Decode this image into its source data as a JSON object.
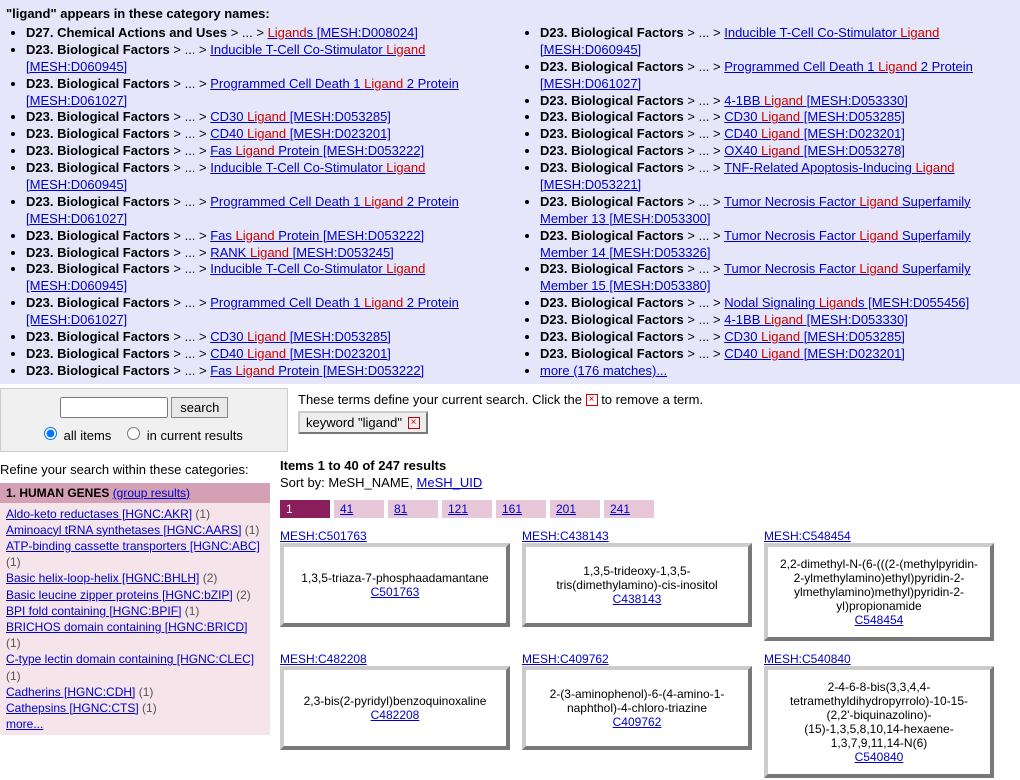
{
  "top": {
    "heading": "\"ligand\" appears in these category names:",
    "leftItems": [
      {
        "prefix": "D27. Chemical Actions and Uses",
        "linkTextPre": "Ligand",
        "linkTextHL": "s",
        "linkMesh": " [MESH:D008024]"
      },
      {
        "prefix": "D23. Biological Factors",
        "linkText": "Inducible T-Cell Co-Stimulator ",
        "hl": "Ligand",
        "mesh": " [MESH:D060945]"
      },
      {
        "prefix": "D23. Biological Factors",
        "linkText": "Programmed Cell Death 1 ",
        "hl": "Ligand",
        "post": " 2 Protein",
        "mesh": " [MESH:D061027]"
      },
      {
        "prefix": "D23. Biological Factors",
        "linkText": "CD30 ",
        "hl": "Ligand",
        "mesh": " [MESH:D053285]"
      },
      {
        "prefix": "D23. Biological Factors",
        "linkText": "CD40 ",
        "hl": "Ligand",
        "mesh": " [MESH:D023201]"
      },
      {
        "prefix": "D23. Biological Factors",
        "linkText": "Fas ",
        "hl": "Ligand",
        "post": " Protein",
        "mesh": " [MESH:D053222]"
      },
      {
        "prefix": "D23. Biological Factors",
        "linkText": "Inducible T-Cell Co-Stimulator ",
        "hl": "Ligand",
        "mesh": " [MESH:D060945]"
      },
      {
        "prefix": "D23. Biological Factors",
        "linkText": "Programmed Cell Death 1 ",
        "hl": "Ligand",
        "post": " 2 Protein",
        "mesh": " [MESH:D061027]"
      },
      {
        "prefix": "D23. Biological Factors",
        "linkText": "Fas ",
        "hl": "Ligand",
        "post": " Protein",
        "mesh": " [MESH:D053222]"
      },
      {
        "prefix": "D23. Biological Factors",
        "linkText": "RANK ",
        "hl": "Ligand",
        "mesh": " [MESH:D053245]"
      },
      {
        "prefix": "D23. Biological Factors",
        "linkText": "Inducible T-Cell Co-Stimulator ",
        "hl": "Ligand",
        "mesh": " [MESH:D060945]"
      },
      {
        "prefix": "D23. Biological Factors",
        "linkText": "Programmed Cell Death 1 ",
        "hl": "Ligand",
        "post": " 2 Protein",
        "mesh": " [MESH:D061027]"
      },
      {
        "prefix": "D23. Biological Factors",
        "linkText": "CD30 ",
        "hl": "Ligand",
        "mesh": " [MESH:D053285]"
      },
      {
        "prefix": "D23. Biological Factors",
        "linkText": "CD40 ",
        "hl": "Ligand",
        "mesh": " [MESH:D023201]"
      },
      {
        "prefix": "D23. Biological Factors",
        "linkText": "Fas ",
        "hl": "Ligand",
        "post": " Protein",
        "mesh": " [MESH:D053222]"
      }
    ],
    "rightItems": [
      {
        "prefix": "D23. Biological Factors",
        "linkText": "Inducible T-Cell Co-Stimulator ",
        "hl": "Ligand",
        "mesh": " [MESH:D060945]"
      },
      {
        "prefix": "D23. Biological Factors",
        "linkText": "Programmed Cell Death 1 ",
        "hl": "Ligand",
        "post": " 2 Protein",
        "mesh": " [MESH:D061027]"
      },
      {
        "prefix": "D23. Biological Factors",
        "linkText": "4-1BB ",
        "hl": "Ligand",
        "mesh": " [MESH:D053330]"
      },
      {
        "prefix": "D23. Biological Factors",
        "linkText": "CD30 ",
        "hl": "Ligand",
        "mesh": " [MESH:D053285]"
      },
      {
        "prefix": "D23. Biological Factors",
        "linkText": "CD40 ",
        "hl": "Ligand",
        "mesh": " [MESH:D023201]"
      },
      {
        "prefix": "D23. Biological Factors",
        "linkText": "OX40 ",
        "hl": "Ligand",
        "mesh": " [MESH:D053278]"
      },
      {
        "prefix": "D23. Biological Factors",
        "linkText": "TNF-Related Apoptosis-Inducing ",
        "hl": "Ligand",
        "mesh": " [MESH:D053221]"
      },
      {
        "prefix": "D23. Biological Factors",
        "linkText": "Tumor Necrosis Factor ",
        "hl": "Ligand",
        "post": " Superfamily Member 13",
        "mesh": " [MESH:D053300]"
      },
      {
        "prefix": "D23. Biological Factors",
        "linkText": "Tumor Necrosis Factor ",
        "hl": "Ligand",
        "post": " Superfamily Member 14",
        "mesh": " [MESH:D053326]"
      },
      {
        "prefix": "D23. Biological Factors",
        "linkText": "Tumor Necrosis Factor ",
        "hl": "Ligand",
        "post": " Superfamily Member 15",
        "mesh": " [MESH:D053380]"
      },
      {
        "prefix": "D23. Biological Factors",
        "linkText": "Nodal Signaling ",
        "hl": "Ligand",
        "post": "s",
        "mesh": " [MESH:D055456]"
      },
      {
        "prefix": "D23. Biological Factors",
        "linkText": "4-1BB ",
        "hl": "Ligand",
        "mesh": " [MESH:D053330]"
      },
      {
        "prefix": "D23. Biological Factors",
        "linkText": "CD30 ",
        "hl": "Ligand",
        "mesh": " [MESH:D053285]"
      },
      {
        "prefix": "D23. Biological Factors",
        "linkText": "CD40 ",
        "hl": "Ligand",
        "mesh": " [MESH:D023201]"
      }
    ],
    "moreText": "more (176 matches)..."
  },
  "search": {
    "button": "search",
    "optAll": "all items",
    "optCurrent": "in current results"
  },
  "terms": {
    "intro": "These terms define your current search. Click the ",
    "intro2": " to remove a term.",
    "chip": "keyword \"ligand\""
  },
  "refine": {
    "heading": "Refine your search within these categories:",
    "sectionTitle": "1. HUMAN GENES ",
    "groupLink": "(group results)",
    "items": [
      {
        "label": "Aldo-keto reductases [HGNC:AKR]",
        "count": "(1)"
      },
      {
        "label": "Aminoacyl tRNA synthetases [HGNC:AARS]",
        "count": "(1)"
      },
      {
        "label": "ATP-binding cassette transporters [HGNC:ABC]",
        "count": "(1)"
      },
      {
        "label": "Basic helix-loop-helix [HGNC:BHLH]",
        "count": "(2)"
      },
      {
        "label": "Basic leucine zipper proteins [HGNC:bZIP]",
        "count": "(2)"
      },
      {
        "label": "BPI fold containing [HGNC:BPIF]",
        "count": "(1)"
      },
      {
        "label": "BRICHOS domain containing [HGNC:BRICD]",
        "count": "(1)"
      },
      {
        "label": "C-type lectin domain containing [HGNC:CLEC]",
        "count": "(1)"
      },
      {
        "label": "Cadherins [HGNC:CDH]",
        "count": "(1)"
      },
      {
        "label": "Cathepsins [HGNC:CTS]",
        "count": "(1)"
      }
    ],
    "more": "more..."
  },
  "results": {
    "countLine": "Items 1 to 40 of 247 results",
    "sortPre": "Sort by: MeSH_NAME, ",
    "sortLink": "MeSH_UID",
    "pages": [
      "1",
      "41",
      "81",
      "121",
      "161",
      "201",
      "241"
    ],
    "cardsRow1": [
      {
        "mesh": "MESH:C501763",
        "name": "1,3,5-triaza-7-phosphaadamantane",
        "code": "C501763"
      },
      {
        "mesh": "MESH:C438143",
        "name": "1,3,5-trideoxy-1,3,5-tris(dimethylamino)-cis-inositol",
        "code": "C438143"
      },
      {
        "mesh": "MESH:C548454",
        "name": "2,2-dimethyl-N-(6-(((2-(methylpyridin-2-ylmethylamino)ethyl)pyridin-2-ylmethylamino)methyl)pyridin-2-yl)propionamide",
        "code": "C548454"
      }
    ],
    "cardsRow2": [
      {
        "mesh": "MESH:C482208",
        "name": "2,3-bis(2-pyridyl)benzoquinoxaline",
        "code": "C482208"
      },
      {
        "mesh": "MESH:C409762",
        "name": "2-(3-aminophenol)-6-(4-amino-1-naphthol)-4-chloro-triazine",
        "code": "C409762"
      },
      {
        "mesh": "MESH:C540840",
        "name": "2-4-6-8-bis(3,3,4,4-tetramethyldihydropyrrolo)-10-15-(2,2'-biquinazolino)-(15)-1,3,5,8,10,14-hexaene-1,3,7,9,11,14-N(6)",
        "code": "C540840"
      }
    ]
  }
}
